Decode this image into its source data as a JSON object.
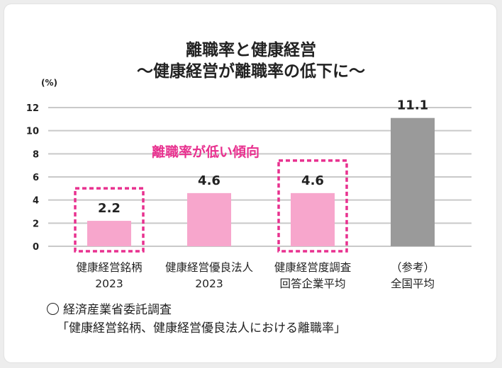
{
  "title_line1": "離職率と健康経営",
  "title_line2": "〜健康経営が離職率の低下に〜",
  "chart_data": {
    "type": "bar",
    "unit": "(%)",
    "categories": [
      [
        "健康経営銘柄",
        "2023"
      ],
      [
        "健康経営優良法人",
        "2023"
      ],
      [
        "健康経営度調査",
        "回答企業平均"
      ],
      [
        "（参考）",
        "全国平均"
      ]
    ],
    "values": [
      2.2,
      4.6,
      4.6,
      11.1
    ],
    "value_labels": [
      "2.2",
      "4.6",
      "4.6",
      "11.1"
    ],
    "bar_colors": [
      "#f7a6cc",
      "#f7a6cc",
      "#f7a6cc",
      "#9a9a9a"
    ],
    "highlight_color": "#e8318f",
    "highlighted": [
      0,
      2
    ],
    "annotation": "離職率が低い傾向",
    "ylim": [
      0,
      12
    ],
    "yticks": [
      0,
      2,
      4,
      6,
      8,
      10,
      12
    ],
    "grid": true,
    "gridColor": "#c9c9c9"
  },
  "note": {
    "source": "経済産業省委託調査",
    "caption": "「健康経営銘柄、健康経営優良法人における離職率」"
  }
}
